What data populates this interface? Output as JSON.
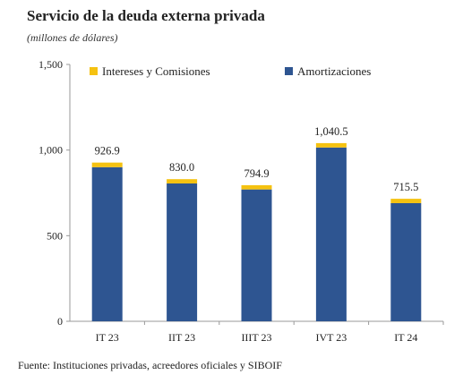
{
  "header": {
    "title": "Servicio de la deuda externa privada",
    "subtitle": "(millones de dólares)"
  },
  "footer": {
    "source": "Fuente: Instituciones privadas, acreedores oficiales y SIBOIF"
  },
  "chart_data": {
    "type": "bar",
    "stacked": true,
    "categories": [
      "IT 23",
      "IIT 23",
      "IIIT 23",
      "IVT 23",
      "IT 24"
    ],
    "series": [
      {
        "name": "Amortizaciones",
        "color": "#2E5591",
        "values": [
          900,
          805,
          770,
          1015,
          690
        ]
      },
      {
        "name": "Intereses y Comisiones",
        "color": "#F5C211",
        "values": [
          26.9,
          25.0,
          24.9,
          25.5,
          25.5
        ]
      }
    ],
    "totals": [
      926.9,
      830.0,
      794.9,
      1040.5,
      715.5
    ],
    "total_labels": [
      "926.9",
      "830.0",
      "794.9",
      "1,040.5",
      "715.5"
    ],
    "legend_order": [
      "Intereses y Comisiones",
      "Amortizaciones"
    ],
    "legend_position": "top",
    "y_ticks": [
      0,
      500,
      1000,
      1500
    ],
    "y_tick_labels": [
      "0",
      "500",
      "1,000",
      "1,500"
    ],
    "ylim": [
      0,
      1500
    ],
    "grid": false
  }
}
